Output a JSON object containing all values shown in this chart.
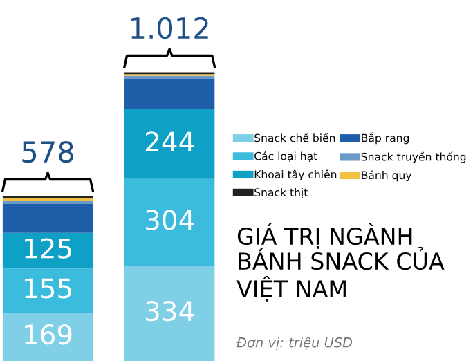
{
  "chart_data": {
    "type": "bar",
    "stacked": true,
    "title": "GIÁ TRỊ NGÀNH BÁNH SNACK CỦA VIỆT NAM",
    "subtitle": "Đơn vị: triệu USD",
    "categories": [
      null,
      null
    ],
    "series": [
      {
        "name": "Snack chế biến",
        "color": "#7fd0e6",
        "values": [
          169,
          334
        ],
        "value_labels": [
          "169",
          "334"
        ]
      },
      {
        "name": "Các loại hạt",
        "color": "#3bbcdc",
        "values": [
          155,
          304
        ],
        "value_labels": [
          "155",
          "304"
        ]
      },
      {
        "name": "Khoai tây chiên",
        "color": "#0fa0c6",
        "values": [
          125,
          244
        ],
        "value_labels": [
          "125",
          "244"
        ]
      },
      {
        "name": "Bắp rang",
        "color": "#1f5ea8",
        "values": [
          101,
          107
        ],
        "value_labels": [
          null,
          null
        ]
      },
      {
        "name": "Snack truyền thống",
        "color": "#6a9ac8",
        "values": [
          12,
          10
        ],
        "value_labels": [
          null,
          null
        ]
      },
      {
        "name": "Bánh quy",
        "color": "#f0c040",
        "values": [
          8,
          6
        ],
        "value_labels": [
          null,
          null
        ]
      },
      {
        "name": "Snack thịt",
        "color": "#222222",
        "values": [
          8,
          7
        ],
        "value_labels": [
          null,
          null
        ]
      }
    ],
    "totals": [
      "578",
      "1.012"
    ],
    "legend": "right"
  }
}
